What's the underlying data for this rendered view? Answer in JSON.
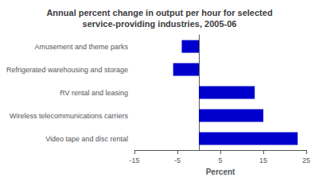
{
  "chart_data": {
    "type": "bar",
    "orientation": "horizontal",
    "title": "Annual percent change in output per hour for selected\nservice-providing industries, 2005-06",
    "categories": [
      "Video tape and disc rental",
      "Wireless telecommunications carriers",
      "RV rental and leasing",
      "Refrigerated warehousing and storage",
      "Amusement and theme parks"
    ],
    "values": [
      23,
      15,
      13,
      -6,
      -4
    ],
    "color": "#0000cc",
    "xlabel": "Percent",
    "xlim": [
      -15,
      25
    ],
    "xticks": [
      -15,
      -5,
      5,
      15,
      25
    ],
    "grid": false
  }
}
